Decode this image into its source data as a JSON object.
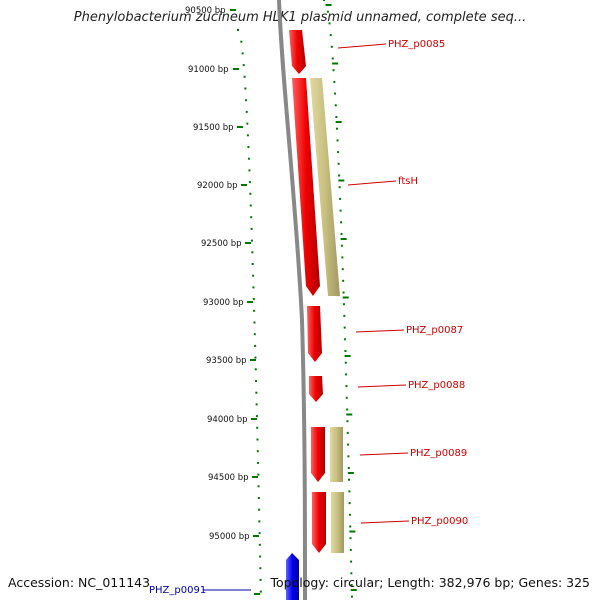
{
  "title": "Phenylobacterium zucineum HLK1 plasmid unnamed, complete seq...",
  "footer": {
    "accession": "Accession: NC_011143",
    "stats": "Topology: circular; Length: 382,976 bp; Genes: 325"
  },
  "ruler": {
    "labels": [
      "90500 bp",
      "91000 bp",
      "91500 bp",
      "92000 bp",
      "92500 bp",
      "93000 bp",
      "93500 bp",
      "94000 bp",
      "94500 bp",
      "95000 bp"
    ]
  },
  "genes": [
    {
      "name": "PHZ_p0085",
      "color": "#cc0000"
    },
    {
      "name": "ftsH",
      "color": "#cc0000"
    },
    {
      "name": "PHZ_p0087",
      "color": "#cc0000"
    },
    {
      "name": "PHZ_p0088",
      "color": "#cc0000"
    },
    {
      "name": "PHZ_p0089",
      "color": "#cc0000"
    },
    {
      "name": "PHZ_p0090",
      "color": "#cc0000"
    },
    {
      "name": "PHZ_p0091",
      "color": "#0000aa"
    }
  ],
  "colors": {
    "forward_gene": "#ee0000",
    "reverse_gene": "#0000ee",
    "feature_band": "#c8c080",
    "backbone": "#888888",
    "tick": "#007700"
  }
}
